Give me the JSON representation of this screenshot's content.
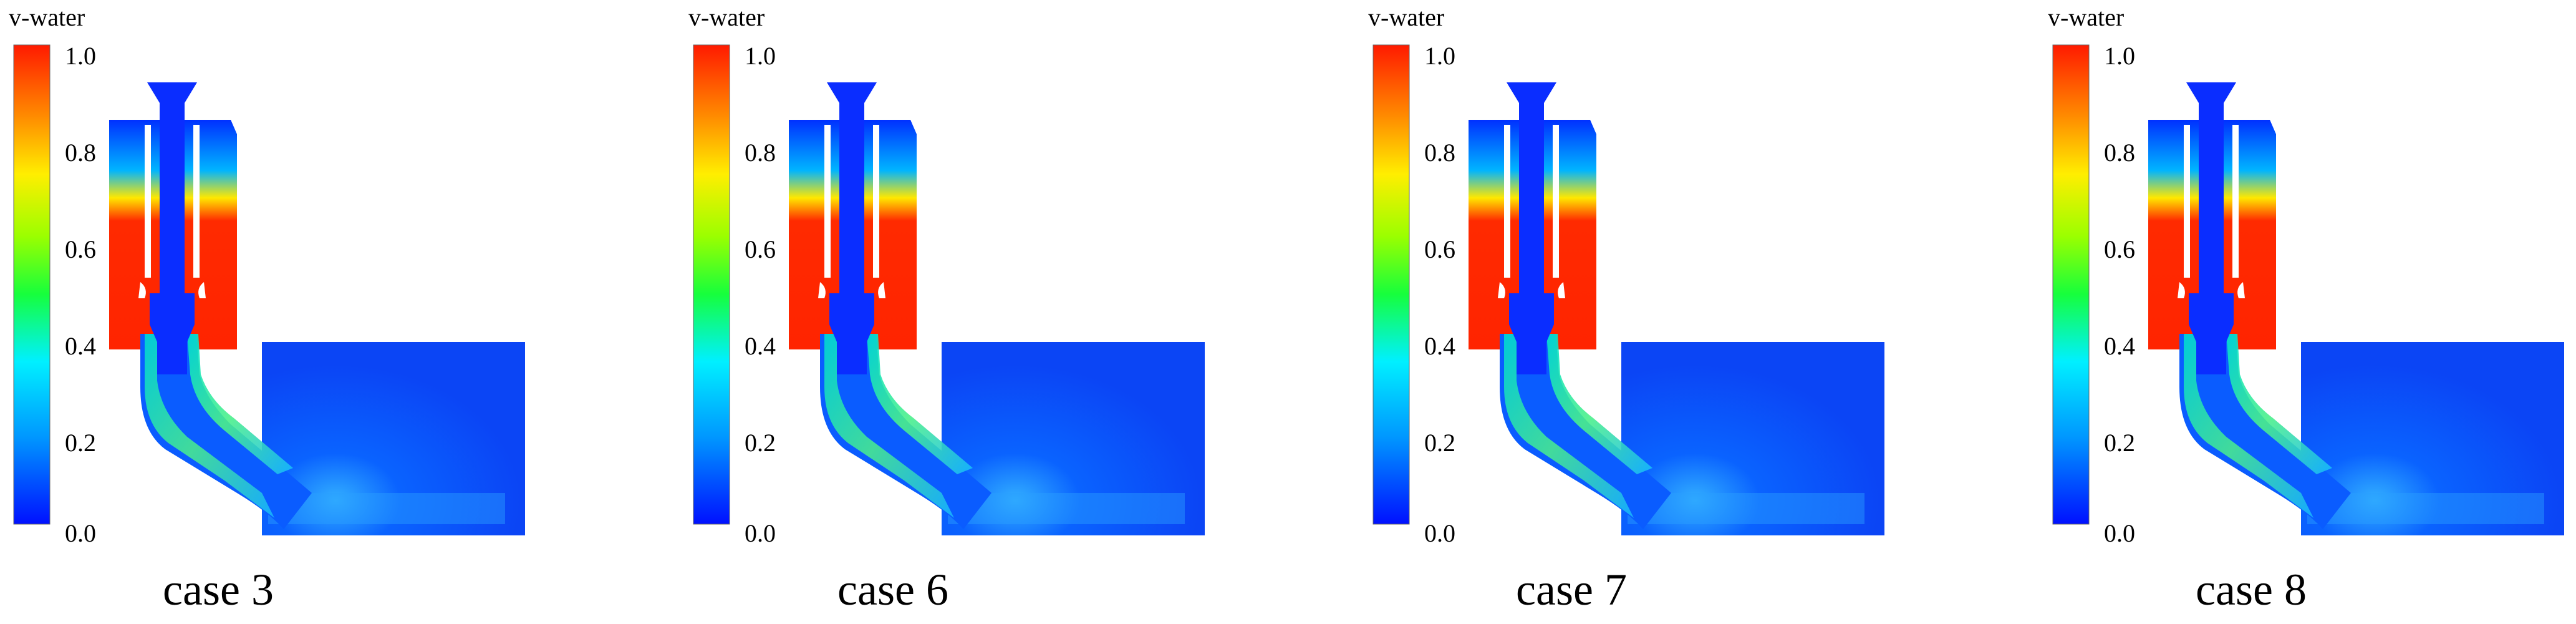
{
  "colorbar": {
    "title": "v-water",
    "ticks": [
      "1.0",
      "0.8",
      "0.6",
      "0.4",
      "0.2",
      "0.0"
    ],
    "colors": [
      "#ff1a00",
      "#ff8c00",
      "#ffee00",
      "#9aff00",
      "#16ff3c",
      "#00f0ff",
      "#0096ff",
      "#0010ff"
    ]
  },
  "panels": [
    {
      "label": "case 3",
      "upper_left_fill": "red-high-volume-fraction",
      "jet_band": "green-cyan"
    },
    {
      "label": "case 6",
      "upper_left_fill": "red-high-volume-fraction",
      "jet_band": "green-cyan"
    },
    {
      "label": "case 7",
      "upper_left_fill": "red-high-volume-fraction",
      "jet_band": "green-cyan"
    },
    {
      "label": "case 8",
      "upper_left_fill": "red-high-volume-fraction",
      "jet_band": "green-cyan"
    }
  ]
}
